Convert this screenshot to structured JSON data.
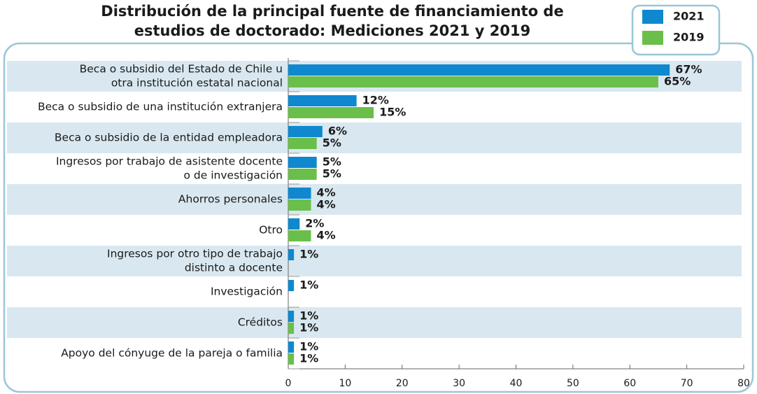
{
  "chart_data": {
    "type": "bar",
    "orientation": "horizontal",
    "title": [
      "Distribución de la principal fuente de financiamiento de",
      "estudios de doctorado: Mediciones 2021 y 2019"
    ],
    "categories": [
      [
        "Beca o subsidio del Estado de Chile u",
        "otra institución estatal nacional"
      ],
      [
        "Beca o subsidio de una institución extranjera"
      ],
      [
        "Beca o subsidio de la entidad empleadora"
      ],
      [
        "Ingresos por trabajo de asistente docente",
        "o de investigación"
      ],
      [
        "Ahorros personales"
      ],
      [
        "Otro"
      ],
      [
        "Ingresos por otro tipo de trabajo",
        "distinto a docente"
      ],
      [
        "Investigación"
      ],
      [
        "Créditos"
      ],
      [
        "Apoyo del cónyuge de la pareja o familia"
      ]
    ],
    "series": [
      {
        "name": "2021",
        "color": "#0f88cf",
        "values": [
          67,
          12,
          6,
          5,
          4,
          2,
          1,
          1,
          1,
          1
        ],
        "value_labels": [
          "67%",
          "12%",
          "6%",
          "5%",
          "4%",
          "2%",
          "1%",
          "1%",
          "1%",
          "1%"
        ]
      },
      {
        "name": "2019",
        "color": "#6abf4b",
        "values": [
          65,
          15,
          5,
          5,
          4,
          4,
          null,
          null,
          1,
          1
        ],
        "value_labels": [
          "65%",
          "15%",
          "5%",
          "5%",
          "4%",
          "4%",
          null,
          null,
          "1%",
          "1%"
        ]
      }
    ],
    "xlim": [
      0,
      80
    ],
    "xticks": [
      0,
      10,
      20,
      30,
      40,
      50,
      60,
      70,
      80
    ],
    "legend": "top-right"
  }
}
